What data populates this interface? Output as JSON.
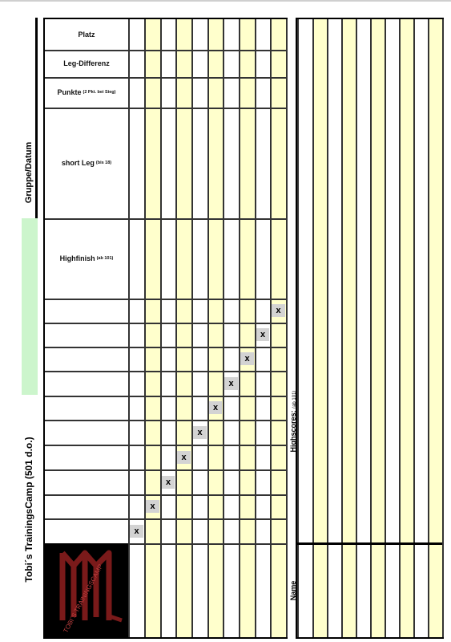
{
  "sheet": {
    "title": "Tobi´s TrainingsCamp (501 d.o.)",
    "group_label": "Gruppe/Datum",
    "highscores_label": "Highscores:",
    "highscores_sub": "(ab 101)",
    "name_label": "Name",
    "logo_text": "TOBI´S TRAININGSCAMP"
  },
  "rows": {
    "platz": "Platz",
    "leg_diff": "Leg-Differenz",
    "punkte": "Punkte",
    "punkte_sub": "(2 Pkt. bei Sieg)",
    "short_leg": "short Leg",
    "short_leg_sub": "(bis 18)",
    "highfinish": "Highfinish",
    "highfinish_sub": "(ab 101)"
  },
  "diagonal_mark": "x",
  "colors": {
    "yellow_column": "#ffffcc",
    "green_band": "#ccf5cc",
    "x_cell": "#d3d3d3"
  }
}
